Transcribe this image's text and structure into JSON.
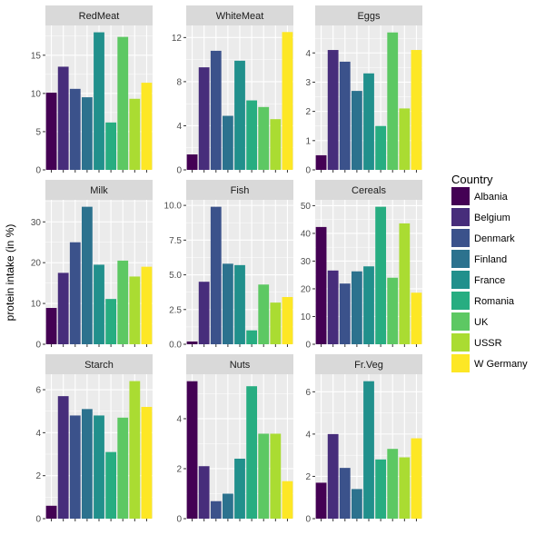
{
  "chart_data": {
    "type": "bar",
    "facet": "wrap",
    "scales": "free_y",
    "ylabel": "protein intake (in %)",
    "xlabel": "",
    "legend": {
      "title": "Country",
      "placement": "right"
    },
    "categories": [
      "Albania",
      "Belgium",
      "Denmark",
      "Finland",
      "France",
      "Romania",
      "UK",
      "USSR",
      "W Germany"
    ],
    "colors": [
      "#440154",
      "#472D7B",
      "#3B528B",
      "#2C728E",
      "#21908C",
      "#27AD81",
      "#5DC863",
      "#AADC32",
      "#FDE725"
    ],
    "panels": [
      {
        "title": "RedMeat",
        "values": [
          10.1,
          13.5,
          10.6,
          9.5,
          18.0,
          6.2,
          17.4,
          9.3,
          11.4
        ],
        "ylim": [
          0,
          18.9
        ],
        "ticks": [
          0,
          5,
          10,
          15
        ],
        "tick_labels": [
          "0",
          "5",
          "10",
          "15"
        ]
      },
      {
        "title": "WhiteMeat",
        "values": [
          1.4,
          9.3,
          10.8,
          4.9,
          9.9,
          6.3,
          5.7,
          4.6,
          12.5
        ],
        "ylim": [
          0,
          13.1
        ],
        "ticks": [
          0,
          4,
          8,
          12
        ],
        "tick_labels": [
          "0",
          "4",
          "8",
          "12"
        ]
      },
      {
        "title": "Eggs",
        "values": [
          0.5,
          4.1,
          3.7,
          2.7,
          3.3,
          1.5,
          4.7,
          2.1,
          4.1
        ],
        "ylim": [
          0,
          4.94
        ],
        "ticks": [
          0,
          1,
          2,
          3,
          4
        ],
        "tick_labels": [
          "0",
          "1",
          "2",
          "3",
          "4"
        ]
      },
      {
        "title": "Milk",
        "values": [
          8.9,
          17.5,
          25.0,
          33.7,
          19.5,
          11.1,
          20.5,
          16.6,
          19.0
        ],
        "ylim": [
          0,
          35.4
        ],
        "ticks": [
          0,
          10,
          20,
          30
        ],
        "tick_labels": [
          "0",
          "10",
          "20",
          "30"
        ]
      },
      {
        "title": "Fish",
        "values": [
          0.2,
          4.5,
          9.9,
          5.8,
          5.7,
          1.0,
          4.3,
          3.0,
          3.4
        ],
        "ylim": [
          0,
          10.4
        ],
        "ticks": [
          0,
          2.5,
          5,
          7.5,
          10
        ],
        "tick_labels": [
          "0.0",
          "2.5",
          "5.0",
          "7.5",
          "10.0"
        ]
      },
      {
        "title": "Cereals",
        "values": [
          42.3,
          26.6,
          21.9,
          26.3,
          28.1,
          49.6,
          24.0,
          43.6,
          18.6
        ],
        "ylim": [
          0,
          52.1
        ],
        "ticks": [
          0,
          10,
          20,
          30,
          40,
          50
        ],
        "tick_labels": [
          "0",
          "10",
          "20",
          "30",
          "40",
          "50"
        ]
      },
      {
        "title": "Starch",
        "values": [
          0.6,
          5.7,
          4.8,
          5.1,
          4.8,
          3.1,
          4.7,
          6.4,
          5.2
        ],
        "ylim": [
          0,
          6.72
        ],
        "ticks": [
          0,
          2,
          4,
          6
        ],
        "tick_labels": [
          "0",
          "2",
          "4",
          "6"
        ]
      },
      {
        "title": "Nuts",
        "values": [
          5.5,
          2.1,
          0.7,
          1.0,
          2.4,
          5.3,
          3.4,
          3.4,
          1.5
        ],
        "ylim": [
          0,
          5.78
        ],
        "ticks": [
          0,
          2,
          4
        ],
        "tick_labels": [
          "0",
          "2",
          "4"
        ]
      },
      {
        "title": "Fr.Veg",
        "values": [
          1.7,
          4.0,
          2.4,
          1.4,
          6.5,
          2.8,
          3.3,
          2.9,
          3.8
        ],
        "ylim": [
          0,
          6.83
        ],
        "ticks": [
          0,
          2,
          4,
          6
        ],
        "tick_labels": [
          "0",
          "2",
          "4",
          "6"
        ]
      }
    ]
  }
}
